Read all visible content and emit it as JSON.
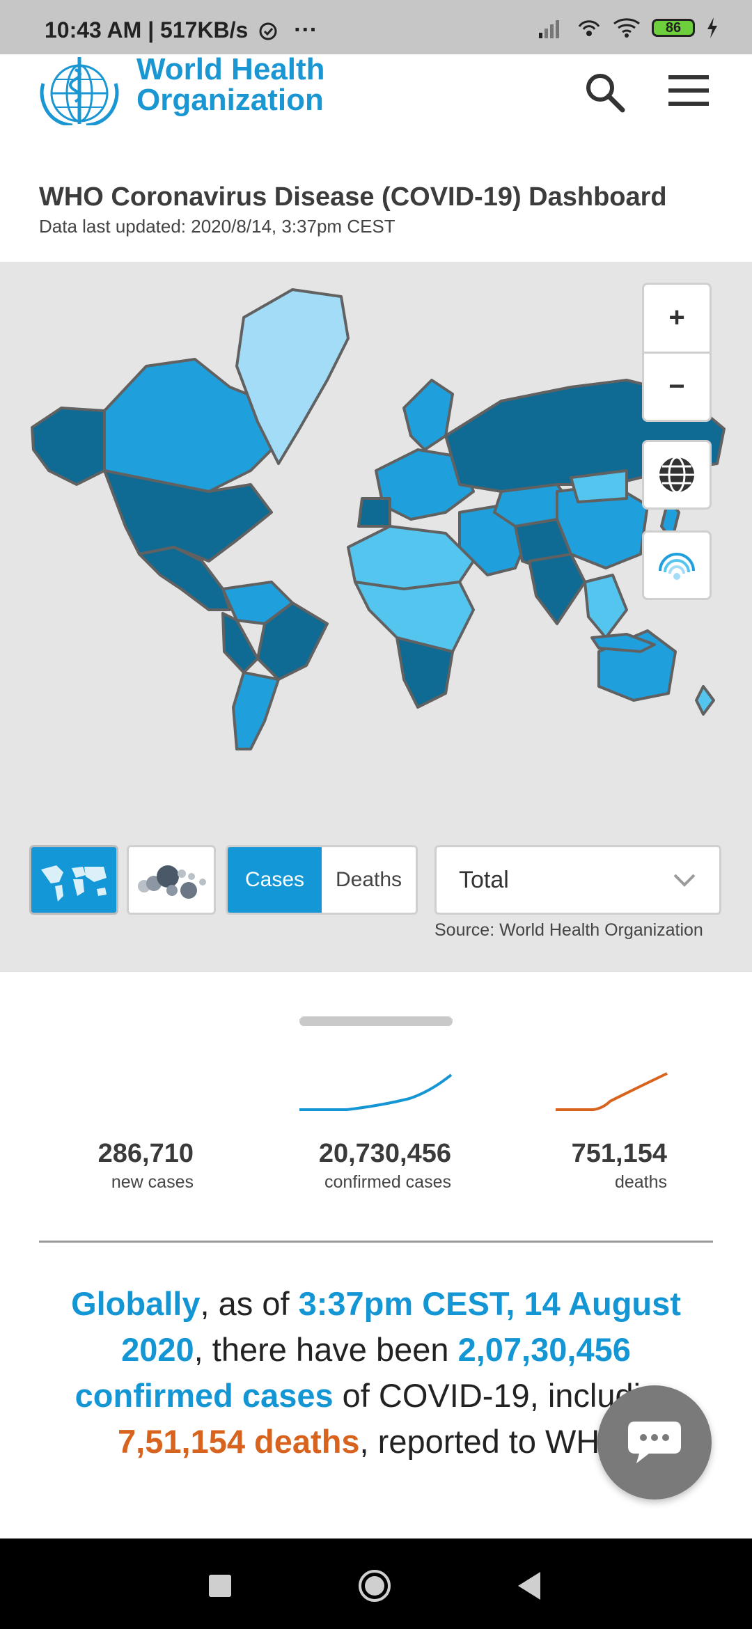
{
  "status_bar": {
    "time": "10:43 AM | 517KB/s",
    "more": "···",
    "battery": "86"
  },
  "header": {
    "logo_line1": "World Health",
    "logo_line2": "Organization",
    "icons": [
      "search-icon",
      "hamburger-menu-icon"
    ]
  },
  "page": {
    "title": "WHO Coronavirus Disease (COVID-19) Dashboard",
    "last_updated": "Data last updated: 2020/8/14, 3:37pm CEST"
  },
  "map": {
    "zoom_in": "+",
    "zoom_out": "−",
    "map_view_icon": "world-map-icon",
    "bubble_view_icon": "bubble-chart-icon",
    "globe_icon": "globe-icon",
    "signal_icon": "broadcast-icon",
    "toggle_cases": "Cases",
    "toggle_deaths": "Deaths",
    "selected_toggle": "Cases",
    "metric_select": "Total",
    "source": "Source:  World Health Organization",
    "colors": {
      "dark": "#0f6b93",
      "mid": "#1fa0dc",
      "light": "#54c5ef",
      "lightest": "#a3dcf6",
      "border": "#616161",
      "ocean": "#e5e5e5"
    }
  },
  "stats": [
    {
      "value": "286,710",
      "label": "new cases"
    },
    {
      "value": "20,730,456",
      "label": "confirmed cases",
      "trend_color": "#1396d3"
    },
    {
      "value": "751,154",
      "label": "deaths",
      "trend_color": "#d7631e"
    }
  ],
  "summary": {
    "globally": "Globally",
    "t1": ", as of ",
    "date": "3:37pm CEST, 14 August 2020",
    "t2": ", there have been ",
    "cases": "2,07,30,456 confirmed cases",
    "t3": " of COVID-19, including ",
    "deaths": "7,51,154 deaths",
    "t4": ", reported to WHO."
  },
  "chat_icon": "chat-bubble-icon",
  "nav": [
    "recent-apps-icon",
    "home-icon",
    "back-icon"
  ]
}
